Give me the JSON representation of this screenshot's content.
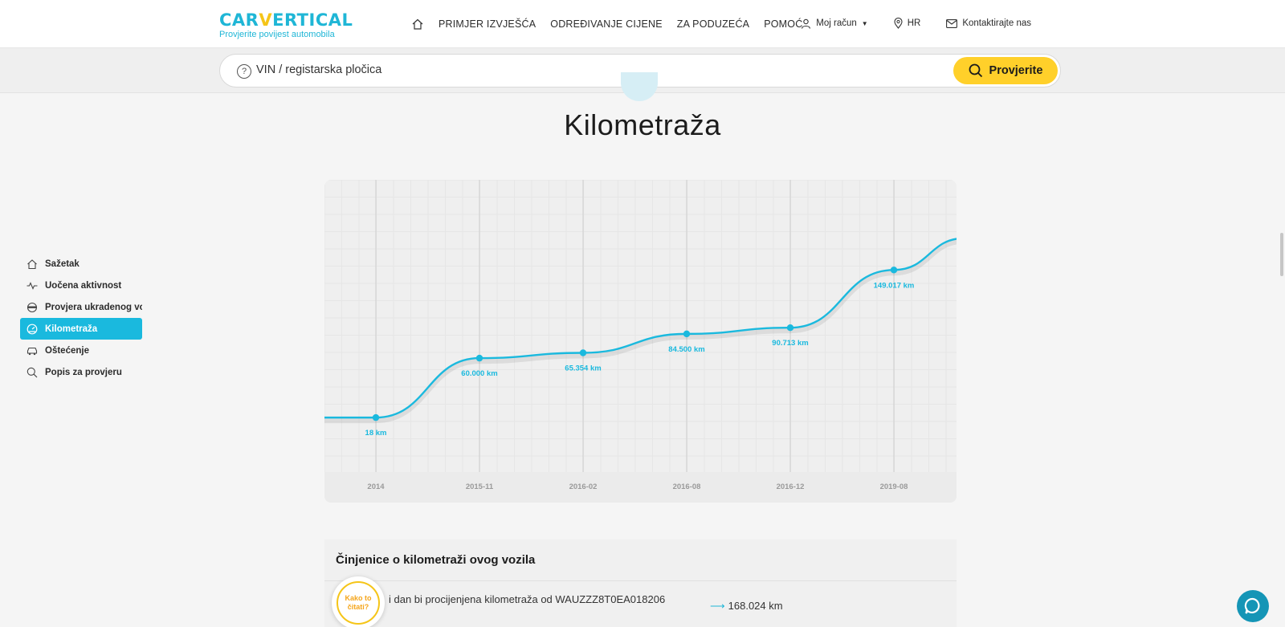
{
  "header": {
    "logo_text_a": "CAR",
    "logo_text_v": "V",
    "logo_text_b": "ERTICAL",
    "tagline": "Provjerite povijest automobila",
    "nav": [
      "PRIMJER IZVJEŠĆA",
      "ODREĐIVANJE CIJENE",
      "ZA PODUZEĆA",
      "POMOĆ"
    ],
    "account": "Moj račun",
    "language": "HR",
    "contact": "Kontaktirajte nas"
  },
  "search": {
    "placeholder": "VIN / registarska pločica",
    "button_label": "Provjerite"
  },
  "page_title": "Kilometraža",
  "sidebar": {
    "items": [
      {
        "label": "Sažetak",
        "icon": "home-icon"
      },
      {
        "label": "Uočena aktivnost",
        "icon": "activity-icon"
      },
      {
        "label": "Provjera ukradenog vozila",
        "icon": "thief-icon"
      },
      {
        "label": "Kilometraža",
        "icon": "speedometer-icon",
        "active": true
      },
      {
        "label": "Oštećenje",
        "icon": "damaged-car-icon"
      },
      {
        "label": "Popis za provjeru",
        "icon": "magnifier-icon"
      }
    ]
  },
  "colors": {
    "accent": "#1ab9de",
    "brand_yellow": "#ffd02a"
  },
  "chart_data": {
    "type": "line",
    "categories": [
      "2014",
      "2015-11",
      "2016-02",
      "2016-08",
      "2016-12",
      "2019-08"
    ],
    "series": [
      {
        "values": [
          18,
          60000,
          65354,
          84500,
          90713,
          149017
        ],
        "value_labels": [
          "18 km",
          "60.000 km",
          "65.354 km",
          "84.500 km",
          "90.713 km",
          "149.017 km"
        ]
      }
    ],
    "title": "",
    "xlabel": "",
    "ylabel": "",
    "grid": true,
    "ylim": [
      -55000,
      240000
    ]
  },
  "facts": {
    "title": "Činjenice o kilometraži ovog vozila",
    "row_text": "i dan bi procijenjena kilometraža od WAUZZZ8T0EA018206",
    "row_value": "168.024 km",
    "help_label": "Kako to čitati?"
  }
}
